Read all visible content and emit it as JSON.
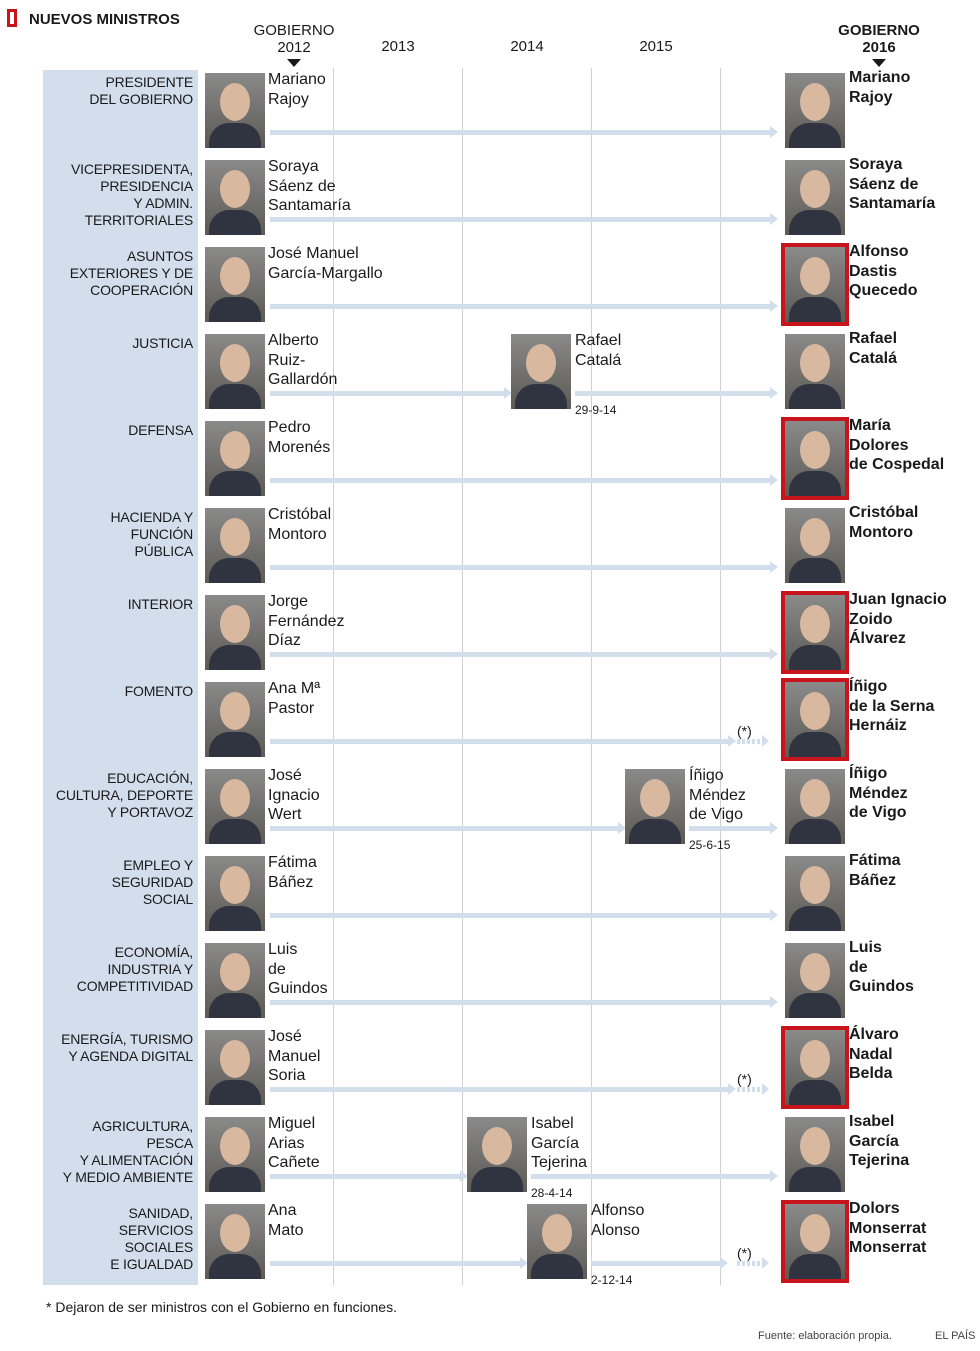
{
  "header": {
    "title": "NUEVOS MINISTROS",
    "gov_2012": "GOBIERNO",
    "year_2012": "2012",
    "years": [
      "2013",
      "2014",
      "2015"
    ],
    "gov_2016": "GOBIERNO",
    "year_2016": "2016"
  },
  "colors": {
    "accent": "#c8151b",
    "panel": "#d3deec",
    "arrow": "#d3deec"
  },
  "rows": [
    {
      "ministry": "PRESIDENTE\nDEL GOBIERNO",
      "from": "Mariano\nRajoy",
      "to": "Mariano\nRajoy",
      "new_in_2016": false
    },
    {
      "ministry": "VICEPRESIDENTA,\nPRESIDENCIA\nY ADMIN.\nTERRITORIALES",
      "from": "Soraya\nSáenz de\nSantamaría",
      "to": "Soraya\nSáenz de\nSantamaría",
      "new_in_2016": false
    },
    {
      "ministry": "ASUNTOS\nEXTERIORES Y DE\nCOOPERACIÓN",
      "from": "José Manuel\nGarcía-Margallo",
      "to": "Alfonso\nDastis\nQuecedo",
      "new_in_2016": true
    },
    {
      "ministry": "JUSTICIA",
      "from": "Alberto\nRuiz-\nGallardón",
      "mid": {
        "name": "Rafael\nCatalá",
        "date": "29-9-14"
      },
      "to": "Rafael\nCatalá",
      "new_in_2016": false
    },
    {
      "ministry": "DEFENSA",
      "from": "Pedro\nMorenés",
      "to": "María\nDolores\nde Cospedal",
      "new_in_2016": true
    },
    {
      "ministry": "HACIENDA Y\nFUNCIÓN\nPÚBLICA",
      "from": "Cristóbal\nMontoro",
      "to": "Cristóbal\nMontoro",
      "new_in_2016": false
    },
    {
      "ministry": "INTERIOR",
      "from": "Jorge\nFernández\nDíaz",
      "to": "Juan Ignacio\nZoido\nÁlvarez",
      "new_in_2016": true
    },
    {
      "ministry": "FOMENTO",
      "from": "Ana Mª\nPastor",
      "to": "Íñigo\nde la Serna\nHernáiz",
      "new_in_2016": true,
      "caretaker": "(*)"
    },
    {
      "ministry": "EDUCACIÓN,\nCULTURA, DEPORTE\nY PORTAVOZ",
      "from": "José\nIgnacio\nWert",
      "mid": {
        "name": "Íñigo\nMéndez\nde Vigo",
        "date": "25-6-15"
      },
      "to": "Íñigo\nMéndez\nde Vigo",
      "new_in_2016": false
    },
    {
      "ministry": "EMPLEO Y\nSEGURIDAD\nSOCIAL",
      "from": "Fátima\nBáñez",
      "to": "Fátima\nBáñez",
      "new_in_2016": false
    },
    {
      "ministry": "ECONOMÍA,\nINDUSTRIA Y\nCOMPETITIVIDAD",
      "from": "Luis\nde\nGuindos",
      "to": "Luis\nde\nGuindos",
      "new_in_2016": false
    },
    {
      "ministry": "ENERGÍA, TURISMO\nY AGENDA DIGITAL",
      "from": "José\nManuel\nSoria",
      "to": "Álvaro\nNadal\nBelda",
      "new_in_2016": true,
      "caretaker": "(*)"
    },
    {
      "ministry": "AGRICULTURA,\nPESCA\nY ALIMENTACIÓN\nY MEDIO AMBIENTE",
      "from": "Miguel\nArias\nCañete",
      "mid": {
        "name": "Isabel\nGarcía\nTejerina",
        "date": "28-4-14"
      },
      "to": "Isabel\nGarcía\nTejerina",
      "new_in_2016": false
    },
    {
      "ministry": "SANIDAD,\nSERVICIOS\nSOCIALES\nE IGUALDAD",
      "from": "Ana\nMato",
      "mid": {
        "name": "Alfonso\nAlonso",
        "date": "2-12-14"
      },
      "to": "Dolors\nMonserrat\nMonserrat",
      "new_in_2016": true,
      "caretaker": "(*)"
    }
  ],
  "footer": {
    "note": "* Dejaron de ser ministros con el Gobierno en funciones.",
    "source": "Fuente: elaboración propia.",
    "credit": "EL PAÍS"
  }
}
